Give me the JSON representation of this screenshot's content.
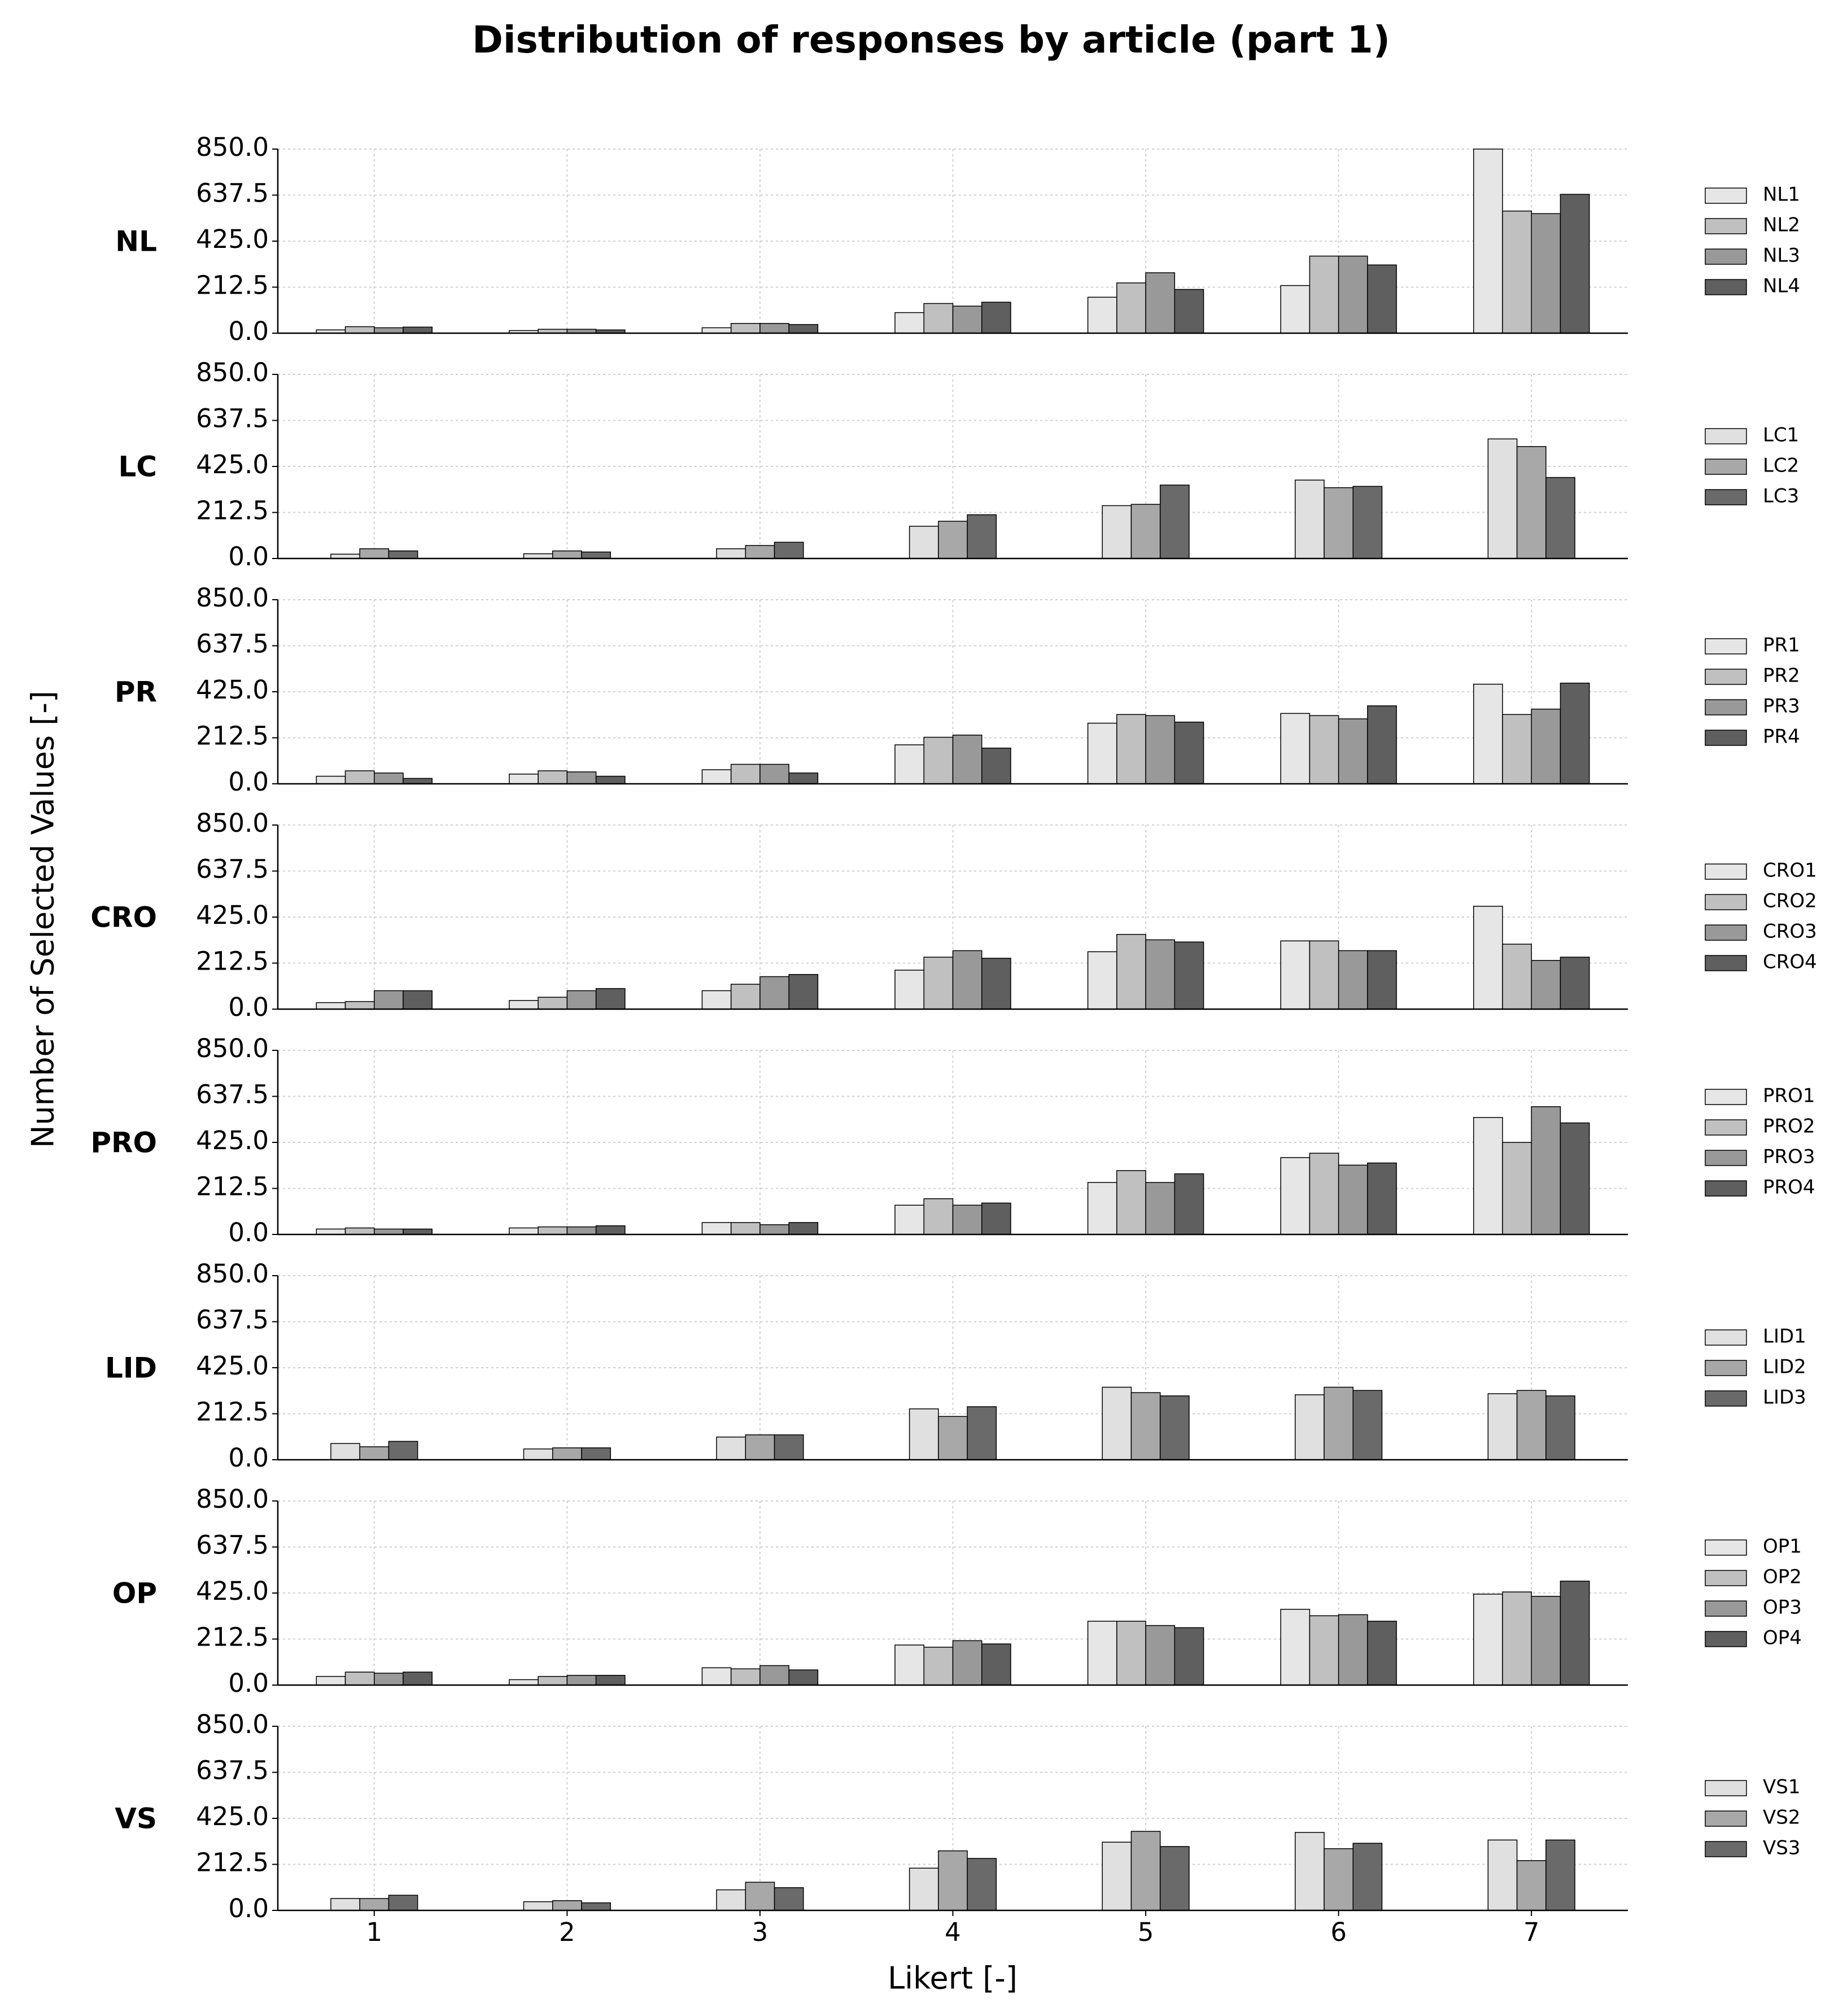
{
  "title": "Distribution of responses by article (part 1)",
  "xlabel": "Likert [-]",
  "ylabel": "Number of Selected Values [-]",
  "chart_data": [
    {
      "type": "bar",
      "ylabel": "NL",
      "categories": [
        "1",
        "2",
        "3",
        "4",
        "5",
        "6",
        "7"
      ],
      "ylim": [
        0,
        850
      ],
      "yticks": [
        {
          "value": 0,
          "label": "0.0"
        },
        212.5,
        {
          "value": 425,
          "label": "425.0"
        },
        637.5,
        {
          "value": 850,
          "label": "850.0"
        }
      ],
      "grid": true,
      "legend": "right",
      "series": [
        {
          "name": "NL1",
          "color": "#e6e6e6",
          "values": [
            15,
            12,
            25,
            95,
            166,
            220,
            850
          ]
        },
        {
          "name": "NL2",
          "color": "#c0c0c0",
          "values": [
            30,
            18,
            45,
            137,
            232,
            356,
            564
          ]
        },
        {
          "name": "NL3",
          "color": "#999999",
          "values": [
            25,
            18,
            45,
            125,
            279,
            356,
            552
          ]
        },
        {
          "name": "NL4",
          "color": "#5f5f5f",
          "values": [
            28,
            15,
            40,
            143,
            202,
            315,
            641
          ]
        }
      ]
    },
    {
      "type": "bar",
      "ylabel": "LC",
      "categories": [
        "1",
        "2",
        "3",
        "4",
        "5",
        "6",
        "7"
      ],
      "ylim": [
        0,
        850
      ],
      "yticks": [
        {
          "value": 0,
          "label": "0.0"
        },
        212.5,
        {
          "value": 425,
          "label": "425.0"
        },
        637.5,
        {
          "value": 850,
          "label": "850.0"
        }
      ],
      "grid": true,
      "legend": "right",
      "series": [
        {
          "name": "LC1",
          "color": "#e0e0e0",
          "values": [
            20,
            22,
            45,
            149,
            244,
            362,
            552
          ]
        },
        {
          "name": "LC2",
          "color": "#a8a8a8",
          "values": [
            45,
            35,
            60,
            172,
            250,
            327,
            517
          ]
        },
        {
          "name": "LC3",
          "color": "#6a6a6a",
          "values": [
            35,
            30,
            75,
            202,
            339,
            333,
            374
          ]
        }
      ]
    },
    {
      "type": "bar",
      "ylabel": "PR",
      "categories": [
        "1",
        "2",
        "3",
        "4",
        "5",
        "6",
        "7"
      ],
      "ylim": [
        0,
        850
      ],
      "yticks": [
        {
          "value": 0,
          "label": "0.0"
        },
        212.5,
        {
          "value": 425,
          "label": "425.0"
        },
        637.5,
        {
          "value": 850,
          "label": "850.0"
        }
      ],
      "grid": true,
      "legend": "right",
      "series": [
        {
          "name": "PR1",
          "color": "#e6e6e6",
          "values": [
            35,
            45,
            65,
            180,
            280,
            325,
            460
          ]
        },
        {
          "name": "PR2",
          "color": "#c0c0c0",
          "values": [
            60,
            60,
            90,
            215,
            320,
            315,
            320
          ]
        },
        {
          "name": "PR3",
          "color": "#999999",
          "values": [
            50,
            55,
            90,
            225,
            315,
            300,
            345
          ]
        },
        {
          "name": "PR4",
          "color": "#5f5f5f",
          "values": [
            25,
            35,
            50,
            165,
            285,
            360,
            465
          ]
        }
      ]
    },
    {
      "type": "bar",
      "ylabel": "CRO",
      "categories": [
        "1",
        "2",
        "3",
        "4",
        "5",
        "6",
        "7"
      ],
      "ylim": [
        0,
        850
      ],
      "yticks": [
        {
          "value": 0,
          "label": "0.0"
        },
        212.5,
        {
          "value": 425,
          "label": "425.0"
        },
        637.5,
        {
          "value": 850,
          "label": "850.0"
        }
      ],
      "grid": true,
      "legend": "right",
      "series": [
        {
          "name": "CRO1",
          "color": "#e6e6e6",
          "values": [
            30,
            40,
            85,
            180,
            265,
            315,
            475
          ]
        },
        {
          "name": "CRO2",
          "color": "#c0c0c0",
          "values": [
            35,
            55,
            115,
            240,
            345,
            315,
            300
          ]
        },
        {
          "name": "CRO3",
          "color": "#999999",
          "values": [
            85,
            85,
            150,
            270,
            320,
            270,
            225
          ]
        },
        {
          "name": "CRO4",
          "color": "#5f5f5f",
          "values": [
            85,
            95,
            160,
            235,
            310,
            270,
            240
          ]
        }
      ]
    },
    {
      "type": "bar",
      "ylabel": "PRO",
      "categories": [
        "1",
        "2",
        "3",
        "4",
        "5",
        "6",
        "7"
      ],
      "ylim": [
        0,
        850
      ],
      "yticks": [
        {
          "value": 0,
          "label": "0.0"
        },
        212.5,
        {
          "value": 425,
          "label": "425.0"
        },
        637.5,
        {
          "value": 850,
          "label": "850.0"
        }
      ],
      "grid": true,
      "legend": "right",
      "series": [
        {
          "name": "PRO1",
          "color": "#e6e6e6",
          "values": [
            25,
            30,
            55,
            135,
            240,
            355,
            540
          ]
        },
        {
          "name": "PRO2",
          "color": "#c0c0c0",
          "values": [
            30,
            35,
            55,
            165,
            295,
            375,
            425
          ]
        },
        {
          "name": "PRO3",
          "color": "#999999",
          "values": [
            25,
            35,
            45,
            135,
            240,
            320,
            590
          ]
        },
        {
          "name": "PRO4",
          "color": "#5f5f5f",
          "values": [
            25,
            40,
            55,
            145,
            280,
            330,
            515
          ]
        }
      ]
    },
    {
      "type": "bar",
      "ylabel": "LID",
      "categories": [
        "1",
        "2",
        "3",
        "4",
        "5",
        "6",
        "7"
      ],
      "ylim": [
        0,
        850
      ],
      "yticks": [
        {
          "value": 0,
          "label": "0.0"
        },
        212.5,
        {
          "value": 425,
          "label": "425.0"
        },
        637.5,
        {
          "value": 850,
          "label": "850.0"
        }
      ],
      "grid": true,
      "legend": "right",
      "series": [
        {
          "name": "LID1",
          "color": "#e0e0e0",
          "values": [
            75,
            50,
            105,
            235,
            335,
            300,
            305
          ]
        },
        {
          "name": "LID2",
          "color": "#a8a8a8",
          "values": [
            60,
            55,
            115,
            200,
            310,
            335,
            320
          ]
        },
        {
          "name": "LID3",
          "color": "#6a6a6a",
          "values": [
            85,
            55,
            115,
            245,
            295,
            320,
            295
          ]
        }
      ]
    },
    {
      "type": "bar",
      "ylabel": "OP",
      "categories": [
        "1",
        "2",
        "3",
        "4",
        "5",
        "6",
        "7"
      ],
      "ylim": [
        0,
        850
      ],
      "yticks": [
        {
          "value": 0,
          "label": "0.0"
        },
        212.5,
        {
          "value": 425,
          "label": "425.0"
        },
        637.5,
        {
          "value": 850,
          "label": "850.0"
        }
      ],
      "grid": true,
      "legend": "right",
      "series": [
        {
          "name": "OP1",
          "color": "#e6e6e6",
          "values": [
            40,
            25,
            80,
            185,
            295,
            350,
            420
          ]
        },
        {
          "name": "OP2",
          "color": "#c0c0c0",
          "values": [
            60,
            40,
            75,
            175,
            295,
            320,
            430
          ]
        },
        {
          "name": "OP3",
          "color": "#999999",
          "values": [
            55,
            45,
            90,
            205,
            275,
            325,
            410
          ]
        },
        {
          "name": "OP4",
          "color": "#5f5f5f",
          "values": [
            60,
            45,
            70,
            190,
            265,
            295,
            480
          ]
        }
      ]
    },
    {
      "type": "bar",
      "ylabel": "VS",
      "categories": [
        "1",
        "2",
        "3",
        "4",
        "5",
        "6",
        "7"
      ],
      "ylim": [
        0,
        850
      ],
      "yticks": [
        {
          "value": 0,
          "label": "0.0"
        },
        212.5,
        {
          "value": 425,
          "label": "425.0"
        },
        637.5,
        {
          "value": 850,
          "label": "850.0"
        }
      ],
      "grid": true,
      "legend": "right",
      "series": [
        {
          "name": "VS1",
          "color": "#e0e0e0",
          "values": [
            55,
            40,
            95,
            195,
            315,
            360,
            325
          ]
        },
        {
          "name": "VS2",
          "color": "#a8a8a8",
          "values": [
            55,
            45,
            130,
            275,
            365,
            285,
            230
          ]
        },
        {
          "name": "VS3",
          "color": "#6a6a6a",
          "values": [
            70,
            35,
            105,
            240,
            295,
            310,
            325
          ]
        }
      ]
    }
  ]
}
